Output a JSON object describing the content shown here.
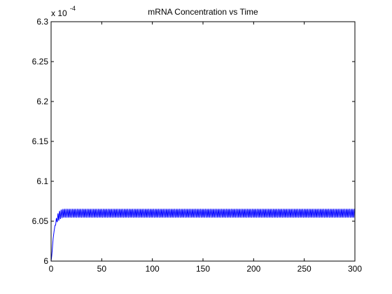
{
  "chart_data": {
    "type": "line",
    "title": "mRNA Concentration vs Time",
    "xlabel": "",
    "ylabel": "",
    "xlim": [
      0,
      300
    ],
    "ylim": [
      6.0,
      6.3
    ],
    "y_exponent_prefix": "x 10",
    "y_exponent_power": "-4",
    "x_ticks": [
      0,
      50,
      100,
      150,
      200,
      250,
      300
    ],
    "x_tick_labels": [
      "0",
      "50",
      "100",
      "150",
      "200",
      "250",
      "300"
    ],
    "y_ticks": [
      6.0,
      6.05,
      6.1,
      6.15,
      6.2,
      6.25,
      6.3
    ],
    "y_tick_labels": [
      "6",
      "6.05",
      "6.1",
      "6.15",
      "6.2",
      "6.25",
      "6.3"
    ],
    "grid": false,
    "legend": "none",
    "series": [
      {
        "color": "#0000ff",
        "x": [
          0,
          0.5,
          1,
          1.5,
          2,
          3,
          4,
          5,
          6,
          7,
          8,
          9,
          10,
          12,
          15,
          20,
          30,
          50,
          100,
          150,
          200,
          250,
          300
        ],
        "y": [
          6.0,
          6.005,
          6.012,
          6.02,
          6.028,
          6.038,
          6.045,
          6.05,
          6.053,
          6.055,
          6.057,
          6.058,
          6.059,
          6.06,
          6.06,
          6.06,
          6.06,
          6.06,
          6.06,
          6.06,
          6.06,
          6.06,
          6.06
        ],
        "oscillation_amplitude": 0.0055,
        "oscillation_period": 1.6,
        "oscillation_start": 3
      }
    ]
  }
}
